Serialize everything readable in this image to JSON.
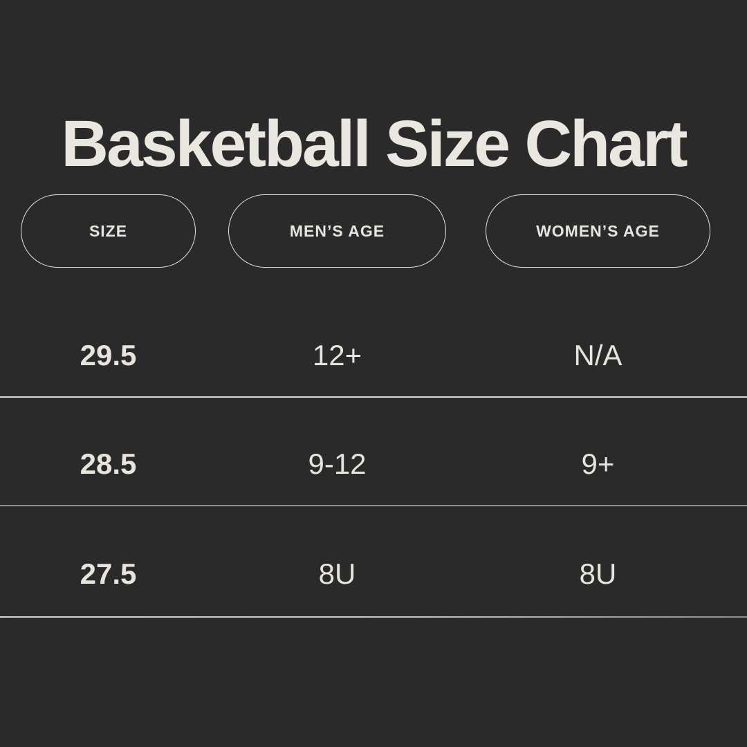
{
  "style": {
    "background_color": "#2a2a2a",
    "text_color": "#e6e4dd",
    "title_color": "#e9e7e0",
    "divider_color_light": "#d9d7d1",
    "divider_color_gray": "#8d8d8b"
  },
  "chart_data": {
    "type": "table",
    "title": "Basketball Size Chart",
    "columns": [
      "SIZE",
      "MEN’S AGE",
      "WOMEN’S AGE"
    ],
    "rows": [
      [
        "29.5",
        "12+",
        "N/A"
      ],
      [
        "28.5",
        "9-12",
        "9+"
      ],
      [
        "27.5",
        "8U",
        "8U"
      ]
    ]
  }
}
